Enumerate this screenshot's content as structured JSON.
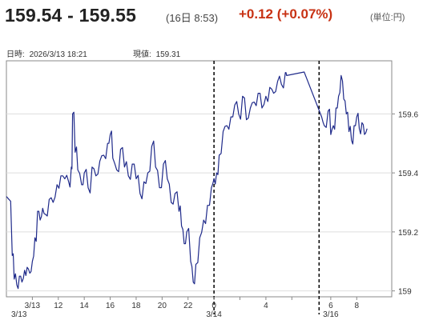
{
  "header": {
    "price_range": "159.54 - 159.55",
    "time": "(16日 8:53)",
    "change": "+0.12 (+0.07%)",
    "unit": "(単位:円)"
  },
  "meta": {
    "datetime_label": "日時:",
    "datetime_value": "2026/3/13 18:21",
    "current_label": "現値:",
    "current_value": "159.31"
  },
  "colors": {
    "line": "#1f2a8a",
    "change": "#c83214",
    "frame": "#888888"
  },
  "chart_data": {
    "type": "line",
    "ylim": [
      158.98,
      159.78
    ],
    "yticks": [
      159,
      159.2,
      159.4,
      159.6
    ],
    "ytick_labels": [
      "159",
      "159.2",
      "159.4",
      "159.6"
    ],
    "xlim": [
      0,
      29.7
    ],
    "xticks": [
      {
        "x": 2,
        "label": "3/13"
      },
      {
        "x": 4,
        "label": "12"
      },
      {
        "x": 6,
        "label": "14"
      },
      {
        "x": 8,
        "label": "16"
      },
      {
        "x": 10,
        "label": "18"
      },
      {
        "x": 12,
        "label": "20"
      },
      {
        "x": 14,
        "label": "22"
      },
      {
        "x": 16,
        "label": "0"
      },
      {
        "x": 18,
        "label": ""
      },
      {
        "x": 20,
        "label": "4"
      },
      {
        "x": 22,
        "label": ""
      },
      {
        "x": 25,
        "label": "6"
      },
      {
        "x": 27,
        "label": "8"
      }
    ],
    "sublabels": [
      {
        "x": 0,
        "label": "3/13"
      },
      {
        "x": 16,
        "label": "3/14"
      },
      {
        "x": 25,
        "label": "3/16"
      }
    ],
    "dividers": [
      16,
      24.1
    ],
    "series": [
      {
        "points": [
          [
            0.0,
            159.32
          ],
          [
            0.2,
            159.31
          ],
          [
            0.45,
            159.12
          ],
          [
            0.6,
            159.04
          ],
          [
            0.8,
            159.02
          ],
          [
            1.0,
            159.05
          ],
          [
            1.2,
            159.03
          ],
          [
            1.4,
            159.07
          ],
          [
            1.6,
            159.08
          ],
          [
            1.8,
            159.06
          ],
          [
            2.0,
            159.1
          ],
          [
            2.2,
            159.18
          ],
          [
            2.4,
            159.27
          ],
          [
            2.6,
            159.24
          ],
          [
            2.8,
            159.28
          ],
          [
            3.0,
            159.26
          ],
          [
            3.3,
            159.31
          ],
          [
            3.6,
            159.3
          ],
          [
            3.9,
            159.36
          ],
          [
            4.2,
            159.39
          ],
          [
            4.5,
            159.38
          ],
          [
            4.8,
            159.37
          ],
          [
            5.0,
            159.42
          ],
          [
            5.1,
            159.6
          ],
          [
            5.3,
            159.47
          ],
          [
            5.5,
            159.41
          ],
          [
            5.8,
            159.36
          ],
          [
            6.0,
            159.4
          ],
          [
            6.3,
            159.35
          ],
          [
            6.6,
            159.42
          ],
          [
            6.9,
            159.39
          ],
          [
            7.2,
            159.44
          ],
          [
            7.5,
            159.46
          ],
          [
            7.8,
            159.5
          ],
          [
            8.0,
            159.53
          ],
          [
            8.2,
            159.45
          ],
          [
            8.5,
            159.41
          ],
          [
            8.8,
            159.48
          ],
          [
            9.1,
            159.42
          ],
          [
            9.4,
            159.39
          ],
          [
            9.7,
            159.43
          ],
          [
            10.0,
            159.38
          ],
          [
            10.3,
            159.33
          ],
          [
            10.6,
            159.37
          ],
          [
            10.9,
            159.4
          ],
          [
            11.2,
            159.49
          ],
          [
            11.5,
            159.42
          ],
          [
            11.8,
            159.35
          ],
          [
            12.1,
            159.43
          ],
          [
            12.4,
            159.38
          ],
          [
            12.7,
            159.3
          ],
          [
            13.0,
            159.33
          ],
          [
            13.3,
            159.27
          ],
          [
            13.5,
            159.22
          ],
          [
            13.7,
            159.16
          ],
          [
            13.9,
            159.2
          ],
          [
            14.2,
            159.1
          ],
          [
            14.4,
            159.03
          ],
          [
            14.6,
            159.09
          ],
          [
            14.9,
            159.18
          ],
          [
            15.2,
            159.24
          ],
          [
            15.5,
            159.29
          ],
          [
            15.8,
            159.35
          ],
          [
            16.0,
            159.38
          ],
          [
            16.2,
            159.4
          ],
          [
            16.4,
            159.46
          ],
          [
            16.7,
            159.54
          ],
          [
            17.0,
            159.56
          ],
          [
            17.3,
            159.59
          ],
          [
            17.6,
            159.63
          ],
          [
            17.9,
            159.6
          ],
          [
            18.2,
            159.66
          ],
          [
            18.5,
            159.58
          ],
          [
            18.8,
            159.62
          ],
          [
            19.1,
            159.64
          ],
          [
            19.4,
            159.67
          ],
          [
            19.7,
            159.62
          ],
          [
            20.0,
            159.66
          ],
          [
            20.3,
            159.69
          ],
          [
            20.6,
            159.67
          ],
          [
            20.9,
            159.71
          ],
          [
            21.2,
            159.7
          ],
          [
            21.5,
            159.74
          ],
          [
            21.6,
            159.73
          ],
          [
            24.3,
            159.59
          ],
          [
            24.5,
            159.56
          ],
          [
            24.8,
            159.61
          ],
          [
            25.0,
            159.53
          ],
          [
            25.2,
            159.56
          ],
          [
            25.4,
            159.62
          ],
          [
            25.6,
            159.66
          ],
          [
            25.8,
            159.73
          ],
          [
            26.0,
            159.65
          ],
          [
            26.2,
            159.6
          ],
          [
            26.4,
            159.54
          ],
          [
            26.6,
            159.51
          ],
          [
            26.8,
            159.56
          ],
          [
            27.0,
            159.59
          ],
          [
            27.2,
            159.55
          ],
          [
            27.4,
            159.57
          ],
          [
            27.6,
            159.53
          ],
          [
            27.8,
            159.55
          ]
        ]
      }
    ]
  }
}
